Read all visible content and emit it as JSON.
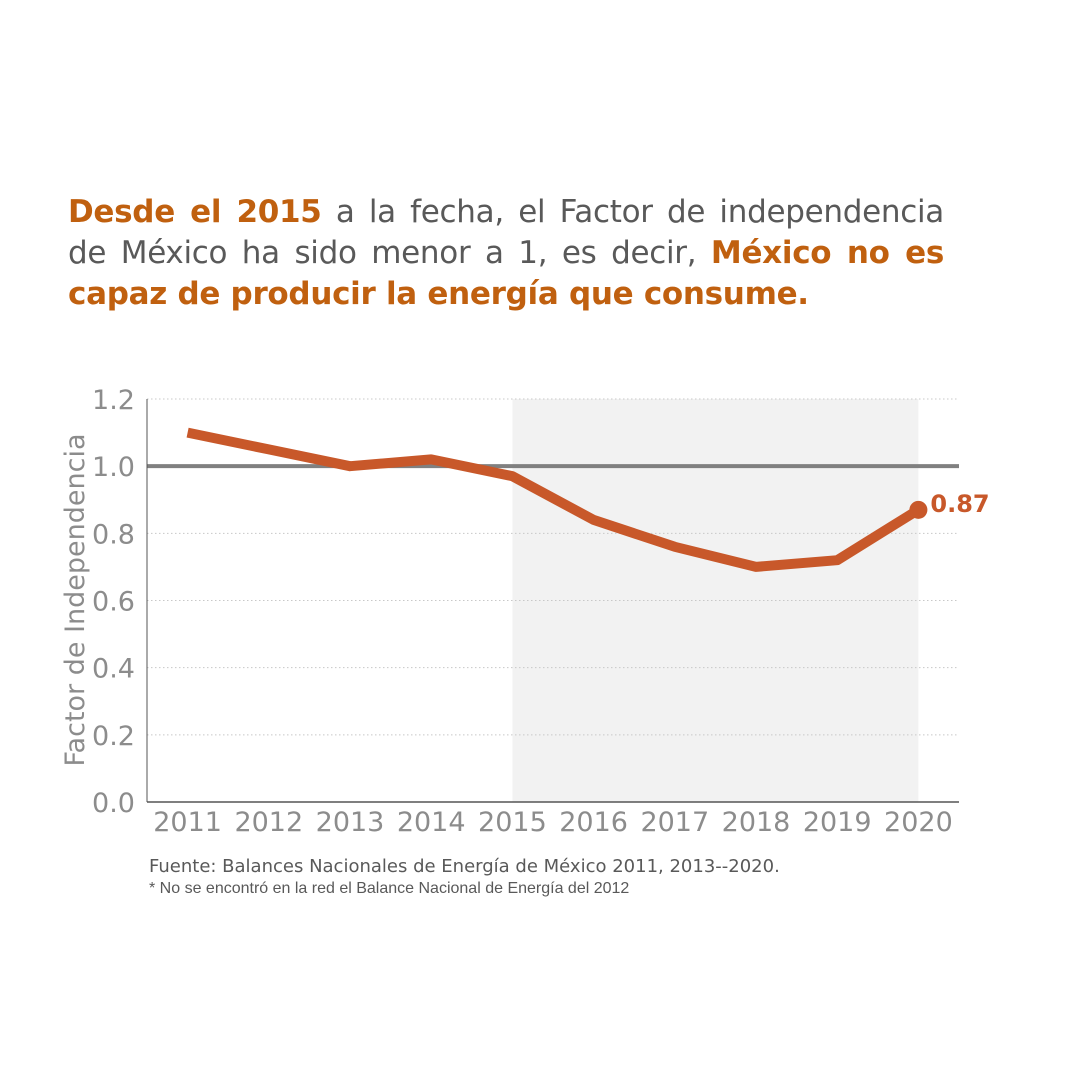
{
  "headline": {
    "part1": "Desde el 2015",
    "part2": " a la fecha, el Factor de independencia de México ha sido menor a 1, es decir, ",
    "part3": "México no es capaz de producir la energía que consume."
  },
  "colors": {
    "accent": "#C0600F",
    "line": "#C8582A",
    "reference_line": "#808080",
    "shade": "#F2F2F2",
    "text": "#595959",
    "axis_text": "#8C8C8C"
  },
  "chart_data": {
    "type": "line",
    "title": "",
    "xlabel": "",
    "ylabel": "Factor de Independencia",
    "x": [
      "2011",
      "2012",
      "2013",
      "2014",
      "2015",
      "2016",
      "2017",
      "2018",
      "2019",
      "2020"
    ],
    "series": [
      {
        "values": [
          1.1,
          1.05,
          1.0,
          1.02,
          0.97,
          0.84,
          0.76,
          0.7,
          0.72,
          0.87
        ]
      }
    ],
    "ylim": [
      0,
      1.2
    ],
    "yticks": [
      "0.0",
      "0.2",
      "0.4",
      "0.6",
      "0.8",
      "1.0",
      "1.2"
    ],
    "reference_line": 1.0,
    "shaded_range": [
      "2015",
      "2020"
    ],
    "end_label": "0.87",
    "grid": "horizontal-dotted",
    "legend": "none"
  },
  "source": "Fuente: Balances Nacionales de Energía de México 2011, 2013--2020.",
  "note": "* No se encontró en la red el Balance Nacional de Energía del 2012"
}
